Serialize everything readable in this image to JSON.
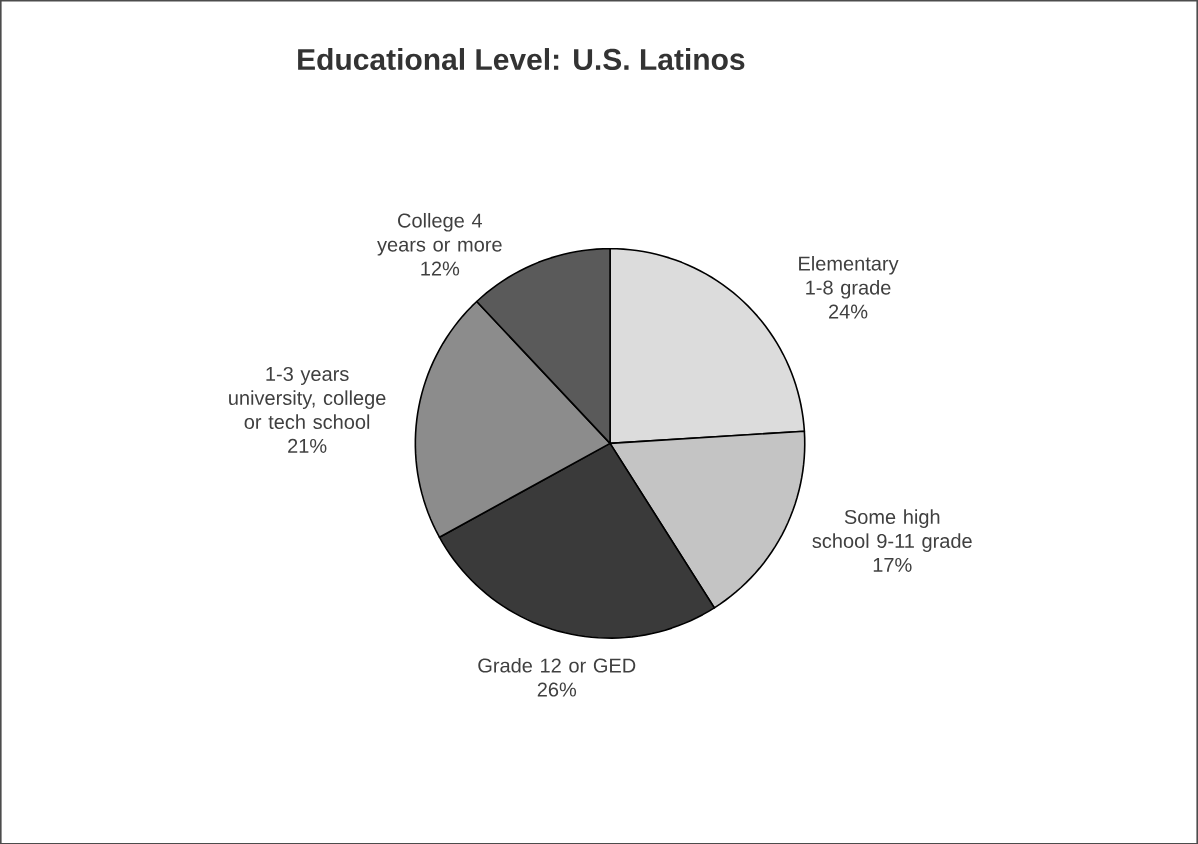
{
  "chart_data": {
    "type": "pie",
    "title": "Educational Level: U.S. Latinos",
    "categories": [
      "Elementary 1-8 grade",
      "Some high school 9-11 grade",
      "Grade 12 or GED",
      "1-3 years university, college or tech school",
      "College 4 years or more"
    ],
    "values": [
      24,
      17,
      26,
      21,
      12
    ],
    "value_labels": [
      "24%",
      "17%",
      "26%",
      "21%",
      "12%"
    ],
    "colors": [
      "#dcdcdc",
      "#c4c4c4",
      "#3a3a3a",
      "#8c8c8c",
      "#5a5a5a"
    ]
  }
}
